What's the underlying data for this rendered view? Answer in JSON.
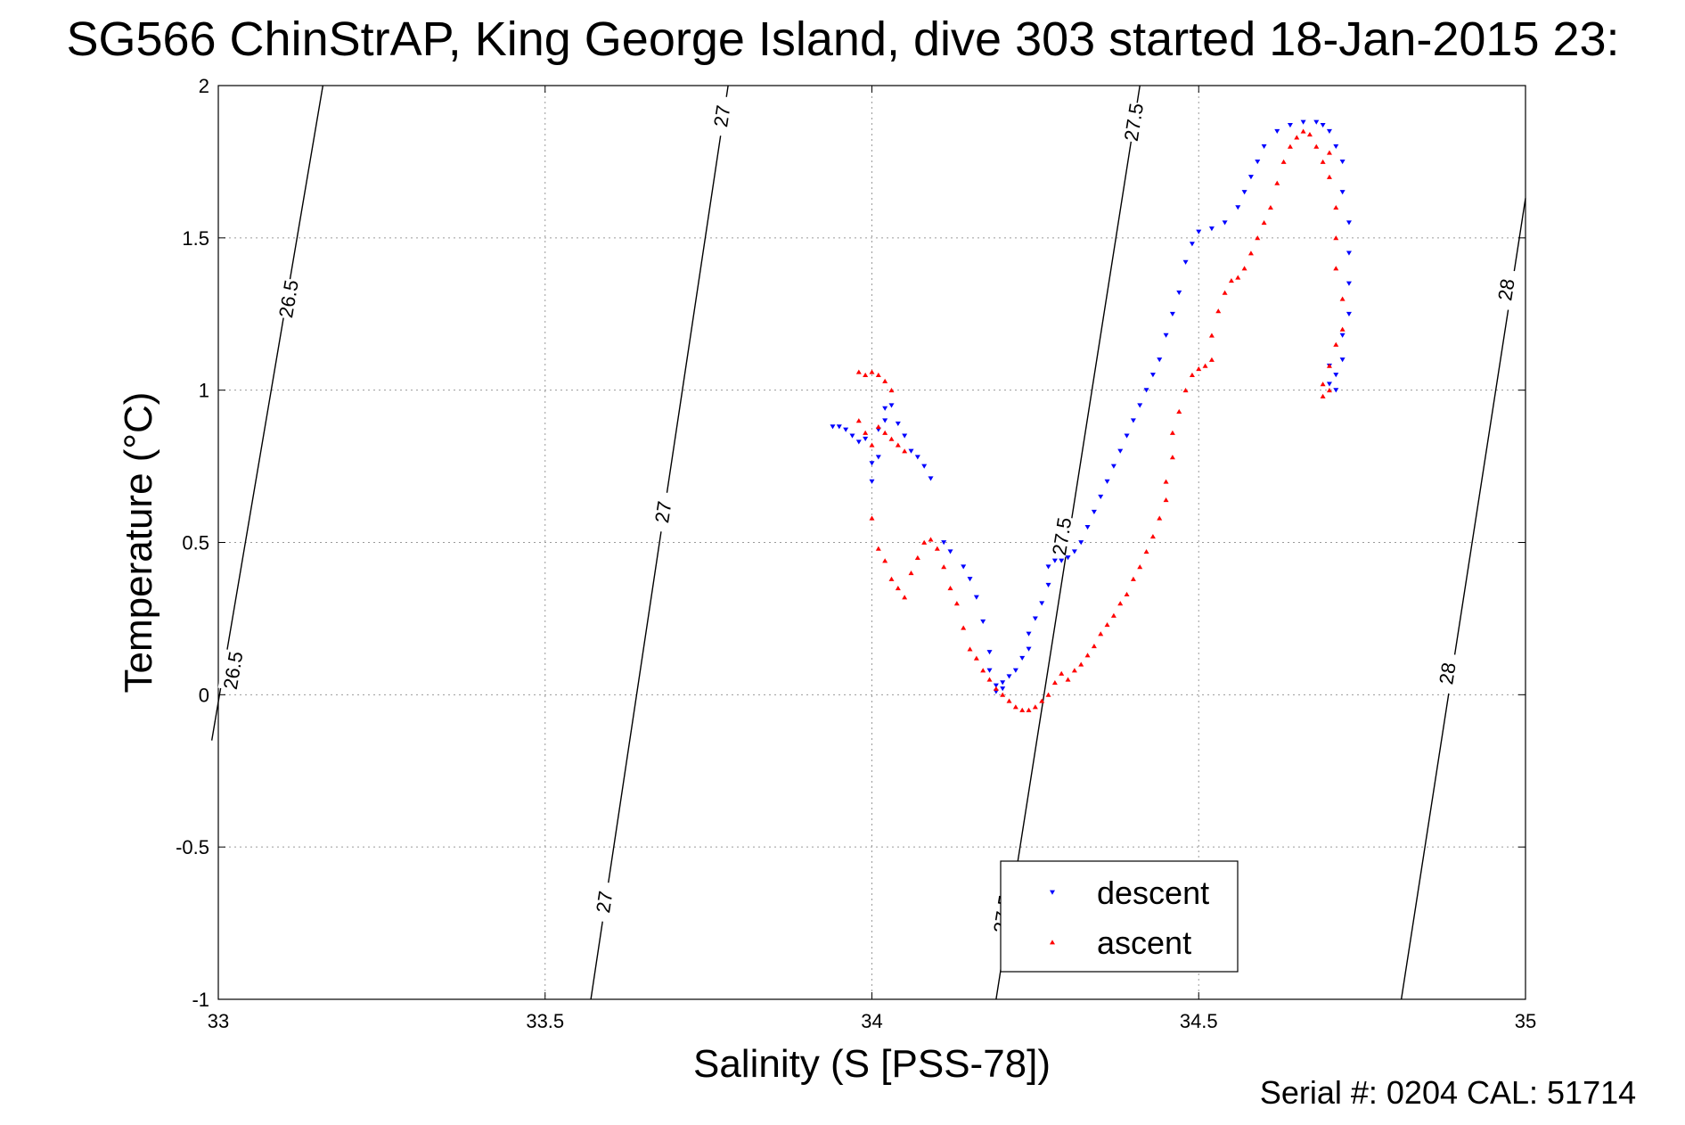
{
  "title": "SG566 ChinStrAP, King George Island, dive 303 started 18-Jan-2015 23:",
  "footer": "Serial #: 0204  CAL: 51714",
  "chart_data": {
    "type": "scatter",
    "xlabel": "Salinity (S [PSS-78])",
    "ylabel": "Temperature (°C)",
    "xlim": [
      33,
      35
    ],
    "ylim": [
      -1,
      2
    ],
    "xticks": [
      33,
      33.5,
      34,
      34.5,
      35
    ],
    "xtick_labels": [
      "33",
      "33.5",
      "34",
      "34.5",
      "35"
    ],
    "yticks": [
      2,
      1.5,
      1,
      0.5,
      0,
      -0.5,
      -1
    ],
    "ytick_labels": [
      "2",
      "1.5",
      "1",
      "0.5",
      "0",
      "-0.5",
      "-1"
    ],
    "grid": true,
    "legend_position": "bottom-center",
    "density_contours": [
      {
        "label": "26.5",
        "points": [
          [
            32.99,
            -0.15
          ],
          [
            33.16,
            2.0
          ]
        ],
        "label_at": [
          [
            33.107,
            1.3
          ],
          [
            33.022,
            0.08
          ]
        ]
      },
      {
        "label": "27",
        "points": [
          [
            33.57,
            -1.0
          ],
          [
            33.78,
            2.0
          ]
        ],
        "label_at": [
          [
            33.77,
            1.9
          ],
          [
            33.68,
            0.6
          ],
          [
            33.59,
            -0.68
          ]
        ]
      },
      {
        "label": "27.5",
        "points": [
          [
            34.19,
            -1.0
          ],
          [
            34.41,
            2.0
          ]
        ],
        "label_at": [
          [
            34.4,
            1.88
          ],
          [
            34.29,
            0.52
          ],
          [
            34.2,
            -0.72
          ]
        ]
      },
      {
        "label": "28",
        "points": [
          [
            34.81,
            -1.0
          ],
          [
            35.0,
            1.63
          ]
        ],
        "label_at": [
          [
            34.97,
            1.33
          ],
          [
            34.88,
            0.07
          ]
        ]
      }
    ],
    "series": [
      {
        "name": "descent",
        "color": "#0000ff",
        "marker": "triangle-down",
        "points": [
          [
            33.94,
            0.88
          ],
          [
            33.95,
            0.88
          ],
          [
            33.96,
            0.87
          ],
          [
            33.97,
            0.85
          ],
          [
            33.98,
            0.83
          ],
          [
            33.99,
            0.84
          ],
          [
            34.0,
            0.76
          ],
          [
            34.0,
            0.7
          ],
          [
            34.01,
            0.78
          ],
          [
            34.01,
            0.87
          ],
          [
            34.02,
            0.9
          ],
          [
            34.02,
            0.94
          ],
          [
            34.03,
            0.95
          ],
          [
            34.04,
            0.89
          ],
          [
            34.05,
            0.85
          ],
          [
            34.06,
            0.8
          ],
          [
            34.07,
            0.78
          ],
          [
            34.08,
            0.75
          ],
          [
            34.09,
            0.71
          ],
          [
            34.11,
            0.5
          ],
          [
            34.12,
            0.47
          ],
          [
            34.14,
            0.42
          ],
          [
            34.15,
            0.38
          ],
          [
            34.16,
            0.32
          ],
          [
            34.17,
            0.24
          ],
          [
            34.18,
            0.14
          ],
          [
            34.18,
            0.08
          ],
          [
            34.19,
            0.03
          ],
          [
            34.19,
            0.01
          ],
          [
            34.2,
            0.02
          ],
          [
            34.2,
            0.04
          ],
          [
            34.21,
            0.06
          ],
          [
            34.22,
            0.08
          ],
          [
            34.23,
            0.12
          ],
          [
            34.24,
            0.15
          ],
          [
            34.24,
            0.2
          ],
          [
            34.25,
            0.25
          ],
          [
            34.26,
            0.3
          ],
          [
            34.27,
            0.36
          ],
          [
            34.27,
            0.42
          ],
          [
            34.28,
            0.44
          ],
          [
            34.29,
            0.44
          ],
          [
            34.3,
            0.45
          ],
          [
            34.31,
            0.47
          ],
          [
            34.32,
            0.5
          ],
          [
            34.33,
            0.55
          ],
          [
            34.34,
            0.6
          ],
          [
            34.35,
            0.65
          ],
          [
            34.36,
            0.7
          ],
          [
            34.37,
            0.75
          ],
          [
            34.38,
            0.8
          ],
          [
            34.39,
            0.85
          ],
          [
            34.4,
            0.9
          ],
          [
            34.41,
            0.95
          ],
          [
            34.42,
            1.0
          ],
          [
            34.43,
            1.05
          ],
          [
            34.44,
            1.1
          ],
          [
            34.45,
            1.18
          ],
          [
            34.46,
            1.25
          ],
          [
            34.47,
            1.32
          ],
          [
            34.48,
            1.42
          ],
          [
            34.49,
            1.48
          ],
          [
            34.5,
            1.52
          ],
          [
            34.52,
            1.53
          ],
          [
            34.54,
            1.55
          ],
          [
            34.56,
            1.6
          ],
          [
            34.57,
            1.65
          ],
          [
            34.58,
            1.7
          ],
          [
            34.59,
            1.75
          ],
          [
            34.6,
            1.8
          ],
          [
            34.62,
            1.85
          ],
          [
            34.64,
            1.87
          ],
          [
            34.66,
            1.88
          ],
          [
            34.68,
            1.88
          ],
          [
            34.69,
            1.87
          ],
          [
            34.7,
            1.85
          ],
          [
            34.71,
            1.8
          ],
          [
            34.72,
            1.75
          ],
          [
            34.72,
            1.65
          ],
          [
            34.73,
            1.55
          ],
          [
            34.73,
            1.45
          ],
          [
            34.73,
            1.35
          ],
          [
            34.73,
            1.25
          ],
          [
            34.72,
            1.18
          ],
          [
            34.72,
            1.1
          ],
          [
            34.71,
            1.05
          ],
          [
            34.71,
            1.0
          ],
          [
            34.7,
            1.02
          ],
          [
            34.7,
            1.08
          ]
        ]
      },
      {
        "name": "ascent",
        "color": "#ff0000",
        "marker": "triangle-up",
        "points": [
          [
            33.98,
            1.06
          ],
          [
            33.99,
            1.05
          ],
          [
            34.0,
            1.06
          ],
          [
            34.01,
            1.05
          ],
          [
            34.02,
            1.03
          ],
          [
            34.03,
            1.0
          ],
          [
            33.98,
            0.9
          ],
          [
            33.99,
            0.86
          ],
          [
            34.0,
            0.82
          ],
          [
            34.01,
            0.88
          ],
          [
            34.02,
            0.86
          ],
          [
            34.03,
            0.84
          ],
          [
            34.04,
            0.82
          ],
          [
            34.05,
            0.8
          ],
          [
            34.0,
            0.58
          ],
          [
            34.01,
            0.48
          ],
          [
            34.02,
            0.44
          ],
          [
            34.03,
            0.38
          ],
          [
            34.04,
            0.35
          ],
          [
            34.05,
            0.32
          ],
          [
            34.06,
            0.4
          ],
          [
            34.07,
            0.45
          ],
          [
            34.08,
            0.5
          ],
          [
            34.09,
            0.51
          ],
          [
            34.1,
            0.48
          ],
          [
            34.11,
            0.42
          ],
          [
            34.12,
            0.35
          ],
          [
            34.13,
            0.3
          ],
          [
            34.14,
            0.22
          ],
          [
            34.15,
            0.15
          ],
          [
            34.16,
            0.12
          ],
          [
            34.17,
            0.08
          ],
          [
            34.18,
            0.05
          ],
          [
            34.19,
            0.02
          ],
          [
            34.2,
            0.0
          ],
          [
            34.21,
            -0.02
          ],
          [
            34.22,
            -0.04
          ],
          [
            34.23,
            -0.05
          ],
          [
            34.24,
            -0.05
          ],
          [
            34.25,
            -0.04
          ],
          [
            34.26,
            -0.02
          ],
          [
            34.27,
            0.0
          ],
          [
            34.28,
            0.04
          ],
          [
            34.29,
            0.07
          ],
          [
            34.3,
            0.05
          ],
          [
            34.31,
            0.08
          ],
          [
            34.32,
            0.1
          ],
          [
            34.33,
            0.13
          ],
          [
            34.34,
            0.16
          ],
          [
            34.35,
            0.2
          ],
          [
            34.36,
            0.23
          ],
          [
            34.37,
            0.26
          ],
          [
            34.38,
            0.3
          ],
          [
            34.39,
            0.33
          ],
          [
            34.4,
            0.38
          ],
          [
            34.41,
            0.42
          ],
          [
            34.42,
            0.47
          ],
          [
            34.43,
            0.52
          ],
          [
            34.44,
            0.58
          ],
          [
            34.45,
            0.64
          ],
          [
            34.45,
            0.7
          ],
          [
            34.46,
            0.78
          ],
          [
            34.46,
            0.86
          ],
          [
            34.47,
            0.93
          ],
          [
            34.48,
            1.0
          ],
          [
            34.49,
            1.05
          ],
          [
            34.5,
            1.07
          ],
          [
            34.51,
            1.08
          ],
          [
            34.52,
            1.1
          ],
          [
            34.52,
            1.18
          ],
          [
            34.53,
            1.26
          ],
          [
            34.54,
            1.32
          ],
          [
            34.55,
            1.36
          ],
          [
            34.56,
            1.37
          ],
          [
            34.57,
            1.4
          ],
          [
            34.58,
            1.45
          ],
          [
            34.59,
            1.5
          ],
          [
            34.6,
            1.55
          ],
          [
            34.61,
            1.6
          ],
          [
            34.62,
            1.68
          ],
          [
            34.63,
            1.75
          ],
          [
            34.64,
            1.8
          ],
          [
            34.65,
            1.83
          ],
          [
            34.66,
            1.85
          ],
          [
            34.67,
            1.84
          ],
          [
            34.68,
            1.8
          ],
          [
            34.69,
            1.75
          ],
          [
            34.7,
            1.78
          ],
          [
            34.7,
            1.7
          ],
          [
            34.71,
            1.6
          ],
          [
            34.71,
            1.5
          ],
          [
            34.71,
            1.4
          ],
          [
            34.72,
            1.3
          ],
          [
            34.72,
            1.2
          ],
          [
            34.71,
            1.15
          ],
          [
            34.7,
            1.08
          ],
          [
            34.69,
            1.02
          ],
          [
            34.69,
            0.98
          ],
          [
            34.7,
            1.0
          ]
        ]
      }
    ]
  }
}
